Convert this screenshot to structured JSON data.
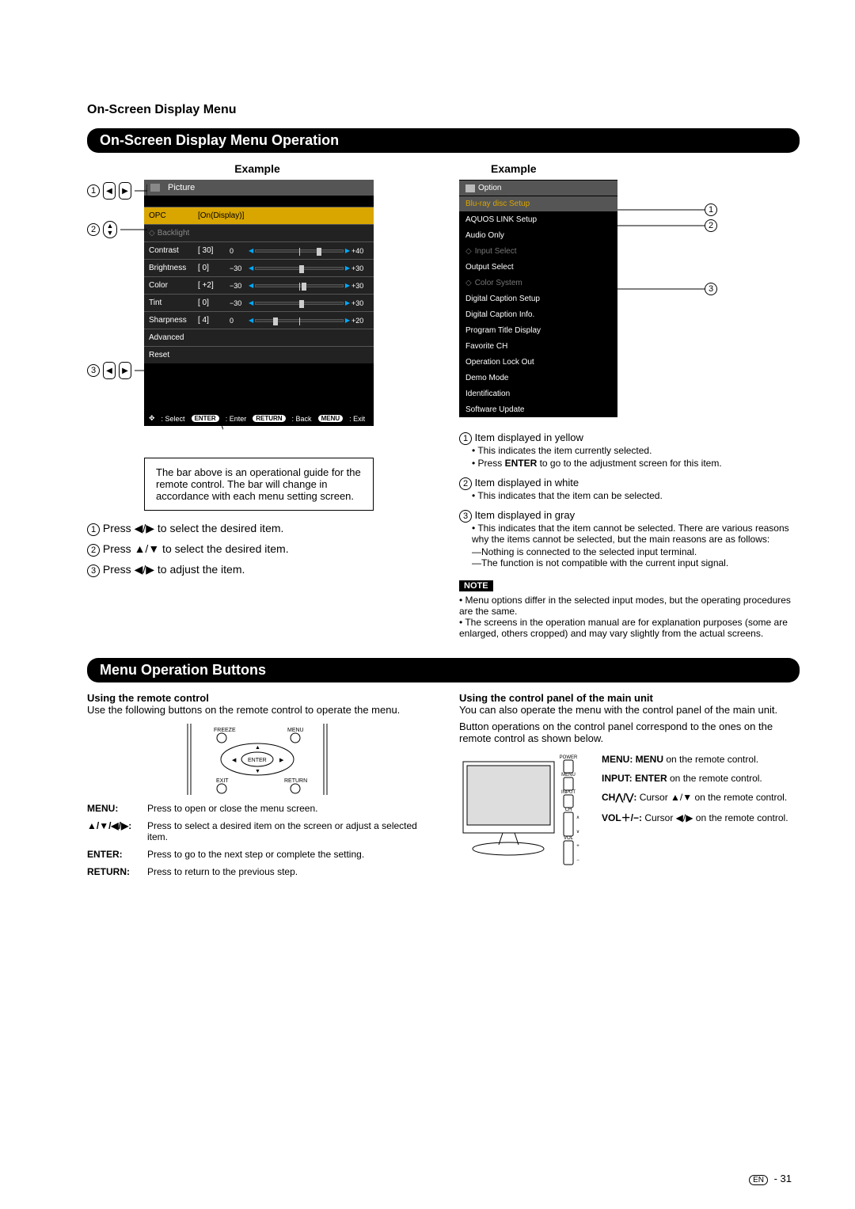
{
  "sectionTitle": "On-Screen Display Menu",
  "bar1": "On-Screen Display Menu Operation",
  "bar2": "Menu Operation Buttons",
  "exampleLabel": "Example",
  "leftOsd": {
    "header": "Picture",
    "opc": {
      "label": "OPC",
      "value": "[On(Display)]"
    },
    "backlight": "Backlight",
    "rows": [
      {
        "label": "Contrast",
        "val": "[  30]",
        "min": "0",
        "max": "+40",
        "knob": 70
      },
      {
        "label": "Brightness",
        "val": "[   0]",
        "min": "−30",
        "max": "+30",
        "knob": 50
      },
      {
        "label": "Color",
        "val": "[  +2]",
        "min": "−30",
        "max": "+30",
        "knob": 53
      },
      {
        "label": "Tint",
        "val": "[   0]",
        "min": "−30",
        "max": "+30",
        "knob": 50
      },
      {
        "label": "Sharpness",
        "val": "[   4]",
        "min": "0",
        "max": "+20",
        "knob": 20
      }
    ],
    "advanced": "Advanced",
    "reset": "Reset",
    "guide": {
      "select": ": Select",
      "enter": "ENTER",
      "enterTxt": ": Enter",
      "return": "RETURN",
      "returnTxt": ": Back",
      "menu": "MENU",
      "menuTxt": ": Exit"
    }
  },
  "balloon": "The bar above is an operational guide for the remote control. The bar will change in accordance with each menu setting screen.",
  "steps": {
    "s1": "Press ◀/▶ to select the desired item.",
    "s2": "Press ▲/▼ to select the desired item.",
    "s3": "Press ◀/▶ to adjust the item."
  },
  "rightOsd": {
    "header": "Option",
    "items": [
      {
        "text": "Blu-ray disc Setup",
        "cls": "yellow"
      },
      {
        "text": "AQUOS LINK Setup",
        "cls": ""
      },
      {
        "text": "Audio Only",
        "cls": ""
      },
      {
        "text": "Input Select",
        "cls": "gray"
      },
      {
        "text": "Output Select",
        "cls": ""
      },
      {
        "text": "Color System",
        "cls": "gray"
      },
      {
        "text": "Digital Caption Setup",
        "cls": ""
      },
      {
        "text": "Digital Caption Info.",
        "cls": ""
      },
      {
        "text": "Program Title Display",
        "cls": ""
      },
      {
        "text": "Favorite CH",
        "cls": ""
      },
      {
        "text": "Operation Lock Out",
        "cls": ""
      },
      {
        "text": "Demo Mode",
        "cls": ""
      },
      {
        "text": "Identification",
        "cls": ""
      },
      {
        "text": "Software Update",
        "cls": ""
      }
    ]
  },
  "explain": {
    "i1": {
      "head": "Item displayed in yellow",
      "b1": "This indicates the item currently selected.",
      "b2a": "Press ",
      "b2b": "ENTER",
      "b2c": " to go to the adjustment screen for this item."
    },
    "i2": {
      "head": "Item displayed in white",
      "b1": "This indicates that the item can be selected."
    },
    "i3": {
      "head": "Item displayed in gray",
      "b1": "This indicates that the item cannot be selected. There are various reasons why the items cannot be selected, but the main reasons are as follows:",
      "d1": "—Nothing is connected to the selected input terminal.",
      "d2": "—The function is not compatible with the current input signal."
    }
  },
  "noteLabel": "NOTE",
  "notes": {
    "n1": "Menu options differ in the selected input modes, but the operating procedures are the same.",
    "n2": "The screens in the operation manual are for explanation purposes (some are enlarged, others cropped) and may vary slightly from the actual screens."
  },
  "remote": {
    "leftHead": "Using the remote control",
    "leftBody": "Use the following buttons on the remote control to operate the menu.",
    "labels": {
      "freeze": "FREEZE",
      "menu": "MENU",
      "enter": "ENTER",
      "exit": "EXIT",
      "return": "RETURN"
    },
    "rows": {
      "menu": {
        "k": "MENU:",
        "v": "Press to open or close the menu screen."
      },
      "arrows": {
        "k": "▲/▼/◀/▶:",
        "v": "Press to select a desired item on the screen or adjust a selected item."
      },
      "enter": {
        "k": "ENTER:",
        "v": "Press to go to the next step or complete the setting."
      },
      "return": {
        "k": "RETURN:",
        "v": "Press to return to the previous step."
      }
    },
    "rightHead": "Using the control panel of the main unit",
    "rightBody1": "You can also operate the menu with the control panel of the main unit.",
    "rightBody2": "Button operations on the control panel correspond to the ones on the remote control as shown below.",
    "panelLabels": {
      "power": "POWER",
      "menu": "MENU",
      "input": "INPUT",
      "ch": "CH",
      "vol": "VOL"
    },
    "map": {
      "m1a": "MENU: MENU",
      "m1b": " on the remote control.",
      "m2a": "INPUT: ENTER",
      "m2b": " on the remote control.",
      "m3a": "CH⋀/⋁: ",
      "m3b": "Cursor ▲/▼ on the remote control.",
      "m4a": "VOL＋/−: ",
      "m4b": "Cursor ◀/▶ on the remote control."
    }
  },
  "pageNum": {
    "en": "EN",
    "dash": " -  ",
    "num": "31"
  }
}
